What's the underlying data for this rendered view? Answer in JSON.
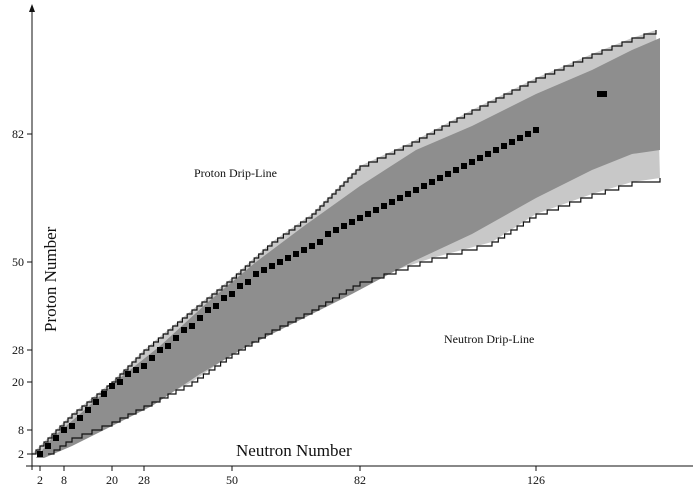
{
  "chart_data": {
    "type": "area",
    "xlabel": "Neutron Number",
    "ylabel": "Proton Number",
    "x_ticks": [
      2,
      8,
      20,
      28,
      50,
      82,
      126
    ],
    "y_ticks": [
      2,
      8,
      20,
      28,
      50,
      82
    ],
    "xlim": [
      0,
      160
    ],
    "ylim": [
      0,
      110
    ],
    "annotations": [
      "Proton Drip-Line",
      "Neutron Drip-Line"
    ],
    "colors": {
      "known_nuclei": "#8e8e8e",
      "predicted_region": "#c8c8c8",
      "stable": "#000000",
      "outline": "#111111"
    },
    "proton_drip_line": [
      [
        0,
        2
      ],
      [
        5,
        7
      ],
      [
        10,
        12
      ],
      [
        20,
        20
      ],
      [
        28,
        28
      ],
      [
        40,
        38
      ],
      [
        50,
        46
      ],
      [
        60,
        55
      ],
      [
        70,
        62
      ],
      [
        82,
        74
      ],
      [
        95,
        80
      ],
      [
        110,
        88
      ],
      [
        126,
        96
      ],
      [
        140,
        102
      ],
      [
        150,
        106
      ],
      [
        156,
        108
      ]
    ],
    "neutron_drip_line": [
      [
        4,
        2
      ],
      [
        10,
        6
      ],
      [
        20,
        10
      ],
      [
        30,
        15
      ],
      [
        40,
        20
      ],
      [
        50,
        27
      ],
      [
        60,
        33
      ],
      [
        70,
        38
      ],
      [
        82,
        45
      ],
      [
        100,
        51
      ],
      [
        115,
        55
      ],
      [
        126,
        62
      ],
      [
        140,
        67
      ],
      [
        150,
        70
      ],
      [
        157,
        71
      ]
    ],
    "known_upper": [
      [
        1,
        1
      ],
      [
        5,
        6
      ],
      [
        12,
        12
      ],
      [
        22,
        21
      ],
      [
        32,
        29
      ],
      [
        44,
        40
      ],
      [
        56,
        50
      ],
      [
        68,
        59
      ],
      [
        82,
        69
      ],
      [
        96,
        78
      ],
      [
        110,
        84
      ],
      [
        126,
        92
      ],
      [
        140,
        98
      ],
      [
        150,
        103
      ],
      [
        157,
        106
      ]
    ],
    "known_lower": [
      [
        3,
        1
      ],
      [
        10,
        4
      ],
      [
        20,
        9
      ],
      [
        30,
        14
      ],
      [
        42,
        22
      ],
      [
        54,
        29
      ],
      [
        66,
        35
      ],
      [
        80,
        42
      ],
      [
        95,
        50
      ],
      [
        110,
        57
      ],
      [
        126,
        66
      ],
      [
        140,
        73
      ],
      [
        150,
        77
      ],
      [
        157,
        78
      ]
    ],
    "stable_nuclei": [
      [
        2,
        2
      ],
      [
        4,
        4
      ],
      [
        6,
        6
      ],
      [
        8,
        8
      ],
      [
        10,
        9
      ],
      [
        12,
        11
      ],
      [
        14,
        13
      ],
      [
        16,
        15
      ],
      [
        18,
        17
      ],
      [
        20,
        19
      ],
      [
        22,
        20
      ],
      [
        24,
        22
      ],
      [
        26,
        23
      ],
      [
        28,
        24
      ],
      [
        30,
        26
      ],
      [
        32,
        28
      ],
      [
        34,
        29
      ],
      [
        36,
        31
      ],
      [
        38,
        33
      ],
      [
        40,
        34
      ],
      [
        42,
        36
      ],
      [
        44,
        38
      ],
      [
        46,
        39
      ],
      [
        48,
        41
      ],
      [
        50,
        42
      ],
      [
        52,
        44
      ],
      [
        54,
        45
      ],
      [
        56,
        47
      ],
      [
        58,
        48
      ],
      [
        60,
        49
      ],
      [
        62,
        50
      ],
      [
        64,
        51
      ],
      [
        66,
        52
      ],
      [
        68,
        53
      ],
      [
        70,
        54
      ],
      [
        72,
        55
      ],
      [
        74,
        57
      ],
      [
        76,
        58
      ],
      [
        78,
        59
      ],
      [
        80,
        60
      ],
      [
        82,
        61
      ],
      [
        84,
        62
      ],
      [
        86,
        63
      ],
      [
        88,
        64
      ],
      [
        90,
        65
      ],
      [
        92,
        66
      ],
      [
        94,
        67
      ],
      [
        96,
        68
      ],
      [
        98,
        69
      ],
      [
        100,
        70
      ],
      [
        102,
        71
      ],
      [
        104,
        72
      ],
      [
        106,
        73
      ],
      [
        108,
        74
      ],
      [
        110,
        75
      ],
      [
        112,
        76
      ],
      [
        114,
        77
      ],
      [
        116,
        78
      ],
      [
        118,
        79
      ],
      [
        120,
        80
      ],
      [
        122,
        81
      ],
      [
        124,
        82
      ],
      [
        126,
        83
      ],
      [
        142,
        92
      ],
      [
        143,
        92
      ]
    ]
  }
}
